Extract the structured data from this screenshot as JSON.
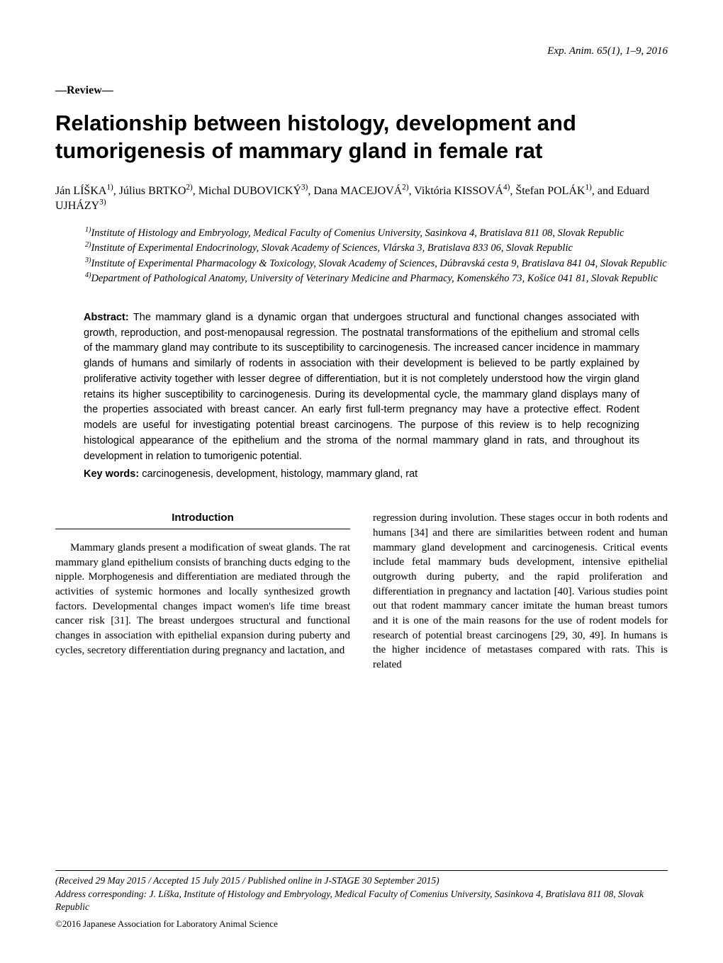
{
  "citation": "Exp. Anim. 65(1), 1–9, 2016",
  "article_type": "—Review—",
  "title": "Relationship between histology, development and tumorigenesis of mammary gland in female rat",
  "authors_html": "Ján LÍŠKA<sup>1)</sup>, Július BRTKO<sup>2)</sup>, Michal DUBOVICKÝ<sup>3)</sup>, Dana MACEJOVÁ<sup>2)</sup>, Viktória KISSOVÁ<sup>4)</sup>, Štefan POLÁK<sup>1)</sup>, and Eduard UJHÁZY<sup>3)</sup>",
  "affiliations": [
    {
      "sup": "1)",
      "text": "Institute of Histology and Embryology, Medical Faculty of Comenius University, Sasinkova 4, Bratislava 811 08, Slovak Republic"
    },
    {
      "sup": "2)",
      "text": "Institute of Experimental Endocrinology, Slovak Academy of Sciences, Vlárska 3, Bratislava 833 06, Slovak Republic"
    },
    {
      "sup": "3)",
      "text": "Institute of Experimental Pharmacology & Toxicology, Slovak Academy of Sciences, Dúbravská cesta 9, Bratislava 841 04, Slovak Republic"
    },
    {
      "sup": "4)",
      "text": "Department of Pathological Anatomy, University of Veterinary Medicine and Pharmacy, Komenského 73, Košice 041 81, Slovak Republic"
    }
  ],
  "abstract_label": "Abstract:",
  "abstract_text": " The mammary gland is a dynamic organ that undergoes structural and functional changes associated with growth, reproduction, and post-menopausal regression. The postnatal transformations of the epithelium and stromal cells of the mammary gland may contribute to its susceptibility to carcinogenesis. The increased cancer incidence in mammary glands of humans and similarly of rodents in association with their development is believed to be partly explained by proliferative activity together with lesser degree of differentiation, but it is not completely understood how the virgin gland retains its higher susceptibility to carcinogenesis. During its developmental cycle, the mammary gland displays many of the properties associated with breast cancer. An early first full-term pregnancy may have a protective effect. Rodent models are useful for investigating potential breast carcinogens. The purpose of this review is to help recognizing histological appearance of the epithelium and the stroma of the normal mammary gland in rats, and throughout its development in relation to tumorigenic potential.",
  "keywords_label": "Key words:",
  "keywords_text": " carcinogenesis, development, histology, mammary gland, rat",
  "section_heading": "Introduction",
  "col_left": "Mammary glands present a modification of sweat glands. The rat mammary gland epithelium consists of branching ducts edging to the nipple. Morphogenesis and differentiation are mediated through the activities of systemic hormones and locally synthesized growth factors. Developmental changes impact women's life time breast cancer risk [31]. The breast undergoes structural and functional changes in association with epithelial expansion during puberty and cycles, secretory differentiation during pregnancy and lactation, and",
  "col_right": "regression during involution. These stages occur in both rodents and humans [34] and there are similarities between rodent and human mammary gland development and carcinogenesis. Critical events include fetal mammary buds development, intensive epithelial outgrowth during puberty, and the rapid proliferation and differentiation in pregnancy and lactation [40]. Various studies point out that rodent mammary cancer imitate the human breast tumors and it is one of the main reasons for the use of rodent models for research of potential breast carcinogens [29, 30, 49]. In humans is the higher incidence of metastases compared with rats. This is related",
  "footer": {
    "received": "(Received 29 May 2015 / Accepted 15 July 2015 / Published online in J-STAGE 30 September 2015)",
    "address": "Address corresponding: J. Líška, Institute of Histology and Embryology, Medical Faculty of Comenius University, Sasinkova 4, Bratislava 811 08, Slovak Republic",
    "copyright": "©2016 Japanese Association for Laboratory Animal Science"
  }
}
